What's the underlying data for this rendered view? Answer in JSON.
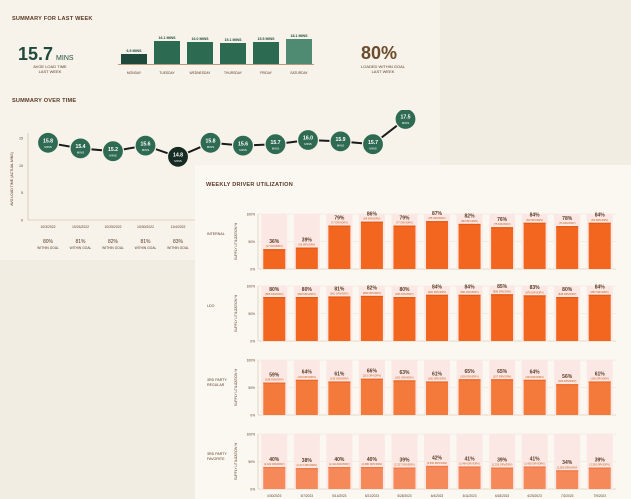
{
  "summary_last_week": {
    "title": "SUMMARY FOR LAST WEEK",
    "avg_load_time": {
      "value": "15.7",
      "unit": "MINS",
      "caption_line1": "AVGE LOAD TIME",
      "caption_line2": "LAST WEEK"
    },
    "loaded_within_goal": {
      "value": "80%",
      "caption_line1": "LOADED WITHIN GOAL",
      "caption_line2": "LAST WEEK"
    },
    "daily": [
      {
        "day": "MONDAY",
        "label": "6.9 MINS",
        "value": 6.9,
        "color": "#1f4a3b"
      },
      {
        "day": "TUESDAY",
        "label": "16.1 MINS",
        "value": 16.1,
        "color": "#2c6a52"
      },
      {
        "day": "WEDNESDAY",
        "label": "16.0 MINS",
        "value": 16.0,
        "color": "#2c6a52"
      },
      {
        "day": "THURSDAY",
        "label": "15.1 MINS",
        "value": 15.1,
        "color": "#2c6a52"
      },
      {
        "day": "FRIDAY",
        "label": "15.5 MINS",
        "value": 15.5,
        "color": "#2c6a52"
      },
      {
        "day": "SATURDAY",
        "label": "18.1 MINS",
        "value": 18.1,
        "color": "#4f8a72"
      }
    ]
  },
  "summary_over_time": {
    "title": "SUMMARY OVER TIME",
    "ylabel": "AVG LOAD TIME (ACTUAL MINS)",
    "y_ticks": [
      "15",
      "10",
      "5",
      "0"
    ],
    "x_labels": [
      "10/3/2022",
      "10/24/2022",
      "10/25/2022",
      "10/30/2022",
      "11/4/2022"
    ],
    "goal_pcts": [
      "80%",
      "81%",
      "82%",
      "81%",
      "83%"
    ],
    "goal_label": "WITHIN GOAL",
    "points": [
      {
        "label": "15.8",
        "value": 15.8
      },
      {
        "label": "15.4",
        "value": 15.4
      },
      {
        "label": "15.2",
        "value": 15.2
      },
      {
        "label": "15.6",
        "value": 15.6
      },
      {
        "label": "14.8",
        "value": 14.8,
        "highlight": true
      },
      {
        "label": "15.8",
        "value": 15.8
      },
      {
        "label": "15.6",
        "value": 15.6
      },
      {
        "label": "15.7",
        "value": 15.7
      },
      {
        "label": "16.0",
        "value": 16.0
      },
      {
        "label": "15.9",
        "value": 15.9
      },
      {
        "label": "15.7",
        "value": 15.7
      },
      {
        "label": "17.5",
        "value": 17.5
      }
    ],
    "unit": "MINS"
  },
  "weekly_driver_utilization": {
    "title": "WEEKLY DRIVER UTILIZATION",
    "ylabel": "SUPPLY UTILIZATION %",
    "y_ticks": [
      "100%",
      "50%",
      "0%"
    ],
    "x_labels": [
      "4/30/2023",
      "5/7/2023",
      "5/14/2023",
      "5/21/2023",
      "5/28/2023",
      "6/4/2023",
      "6/11/2023",
      "6/18/2023",
      "6/25/2023",
      "7/2/2023",
      "7/9/2023"
    ],
    "groups": [
      {
        "name_line1": "INTERNAL",
        "name_line2": "",
        "color": "#f2661f",
        "top_color": "#e35a12",
        "pcts": [
          "36%",
          "39%",
          "79%",
          "86%",
          "79%",
          "87%",
          "82%",
          "76%",
          "84%",
          "78%",
          "84%"
        ],
        "values": [
          36,
          39,
          79,
          86,
          79,
          87,
          82,
          76,
          84,
          78,
          84
        ],
        "subs": [
          "(17 DRV/DRV)",
          "(18 DRV/DRV)",
          "(77 DRV/DRV)",
          "(84 DRV/DRV)",
          "(77 DRV/DRV)",
          "(85 DRV/DRV)",
          "(80 DRV/DRV)",
          "(75 DRV/DRV)",
          "(82 DRV/DRV)",
          "(76 DRV/DRV)",
          "(82 DRV/DRV)"
        ]
      },
      {
        "name_line1": "LDO",
        "name_line2": "",
        "color": "#f2661f",
        "top_color": "#e35a12",
        "pcts": [
          "80%",
          "80%",
          "81%",
          "82%",
          "80%",
          "84%",
          "84%",
          "85%",
          "83%",
          "80%",
          "84%"
        ],
        "values": [
          80,
          80,
          81,
          82,
          80,
          84,
          84,
          85,
          83,
          80,
          84
        ],
        "subs": [
          "(865 DRV/DRV)",
          "(848 DRV/DRV)",
          "(861 DRV/DRV)",
          "(868 DRV/DRV)",
          "(846 DRV/DRV)",
          "(906 DRV/DRV)",
          "(891 DRV/DRV)",
          "(899 DRV/DRV)",
          "(878 DRV/DRV)",
          "(848 DRV/DRV)",
          "(887 DRV/DRV)"
        ]
      },
      {
        "name_line1": "3RD PARTY",
        "name_line2": "REGULAR",
        "color": "#f47a3c",
        "top_color": "#e8692a",
        "pcts": [
          "59%",
          "64%",
          "61%",
          "66%",
          "63%",
          "61%",
          "65%",
          "65%",
          "64%",
          "56%",
          "61%"
        ],
        "values": [
          59,
          64,
          61,
          66,
          63,
          61,
          65,
          65,
          64,
          56,
          61
        ],
        "subs": [
          "(188 DRV/DRV)",
          "(204 DRV/DRV)",
          "(195 DRV/DRV)",
          "(210 DRV/DRV)",
          "(201 DRV/DRV)",
          "(195 DRV/DRV)",
          "(208 DRV/DRV)",
          "(207 DRV/DRV)",
          "(204 DRV/DRV)",
          "(180 DRV/DRV)",
          "(195 DRV/DRV)"
        ]
      },
      {
        "name_line1": "3RD PARTY",
        "name_line2": "FAVORITE",
        "color": "#f5895a",
        "top_color": "#ee7846",
        "pcts": [
          "40%",
          "38%",
          "40%",
          "40%",
          "39%",
          "42%",
          "41%",
          "39%",
          "41%",
          "34%",
          "39%"
        ],
        "values": [
          40,
          38,
          40,
          40,
          39,
          42,
          41,
          39,
          41,
          34,
          39
        ],
        "subs": [
          "(2,422 DRV/DRV)",
          "(2,271 DRV/DRV)",
          "(2,414 DRV/DRV)",
          "(2,380 DRV/DRV)",
          "(2,327 DRV/DRV)",
          "(2,500 DRV/DRV)",
          "(2,464 DRV/DRV)",
          "(2,335 DRV/DRV)",
          "(2,450 DRV/DRV)",
          "(2,050 DRV/DRV)",
          "(2,350 DRV/DRV)"
        ]
      }
    ]
  }
}
